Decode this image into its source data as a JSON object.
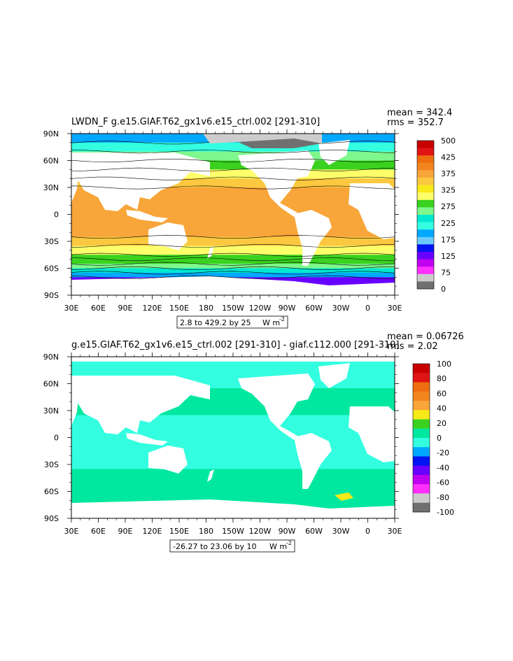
{
  "chart_data": [
    {
      "type": "heatmap",
      "title": "LWDN_F  g.e15.GIAF.T62_gx1v6.e15_ctrl.002  [291-310]",
      "stats": {
        "mean": "mean = 342.4",
        "rms": "rms = 352.7"
      },
      "x_ticks": [
        "30E",
        "60E",
        "90E",
        "120E",
        "150E",
        "180",
        "150W",
        "120W",
        "90W",
        "60W",
        "30W",
        "0",
        "30E"
      ],
      "y_ticks": [
        "90N",
        "60N",
        "30N",
        "0",
        "30S",
        "60S",
        "90S"
      ],
      "xlim": [
        30,
        390
      ],
      "ylim": [
        -90,
        90
      ],
      "range_label": "2.8 to 429.2 by 25",
      "units": "W m",
      "units_exp": "-2",
      "colorbar": {
        "labels": [
          "500",
          "425",
          "375",
          "325",
          "275",
          "225",
          "175",
          "125",
          "75",
          "0"
        ],
        "colors": [
          "#c80000",
          "#e01414",
          "#ee6d10",
          "#f3851f",
          "#f8a53a",
          "#fbc83f",
          "#f7ea18",
          "#ffff6a",
          "#3ad21f",
          "#7ef78c",
          "#00e8d0",
          "#33ffe0",
          "#00a8ff",
          "#6bcaff",
          "#0014f2",
          "#6800ff",
          "#c000f0",
          "#ff30ff",
          "#cccccc",
          "#707070"
        ]
      },
      "bands": [
        {
          "lat": [
            90,
            80
          ],
          "value": 180
        },
        {
          "lat": [
            80,
            70
          ],
          "value": 215
        },
        {
          "lat": [
            70,
            60
          ],
          "value": 260
        },
        {
          "lat": [
            60,
            50
          ],
          "value": 300
        },
        {
          "lat": [
            50,
            40
          ],
          "value": 325
        },
        {
          "lat": [
            40,
            30
          ],
          "value": 355
        },
        {
          "lat": [
            30,
            -25
          ],
          "value": 395
        },
        {
          "lat": [
            -25,
            -35
          ],
          "value": 355
        },
        {
          "lat": [
            -35,
            -45
          ],
          "value": 325
        },
        {
          "lat": [
            -45,
            -50
          ],
          "value": 300
        },
        {
          "lat": [
            -50,
            -55
          ],
          "value": 280
        },
        {
          "lat": [
            -55,
            -60
          ],
          "value": 265
        },
        {
          "lat": [
            -60,
            -65
          ],
          "value": 240
        },
        {
          "lat": [
            -65,
            -70
          ],
          "value": 190
        },
        {
          "lat": [
            -70,
            -90
          ],
          "value": 120
        }
      ]
    },
    {
      "type": "heatmap",
      "title": "g.e15.GIAF.T62_gx1v6.e15_ctrl.002  [291-310]  -  giaf.c112.000  [291-310]",
      "stats": {
        "mean": "mean = 0.06726",
        "rms": "rms = 2.02"
      },
      "x_ticks": [
        "30E",
        "60E",
        "90E",
        "120E",
        "150E",
        "180",
        "150W",
        "120W",
        "90W",
        "60W",
        "30W",
        "0",
        "30E"
      ],
      "y_ticks": [
        "90N",
        "60N",
        "30N",
        "0",
        "30S",
        "60S",
        "90S"
      ],
      "xlim": [
        30,
        390
      ],
      "ylim": [
        -90,
        90
      ],
      "range_label": "-26.27 to 23.06 by 10",
      "units": "W m",
      "units_exp": "-2",
      "colorbar": {
        "labels": [
          "100",
          "80",
          "60",
          "40",
          "20",
          "0",
          "-20",
          "-40",
          "-60",
          "-80",
          "-100"
        ],
        "colors": [
          "#c80000",
          "#e01414",
          "#ee6d10",
          "#f3851f",
          "#f8a53a",
          "#f7ea18",
          "#3ad21f",
          "#00e8a0",
          "#33ffe0",
          "#00a8ff",
          "#0014f2",
          "#6800ff",
          "#c000f0",
          "#ff30ff",
          "#cccccc",
          "#707070"
        ]
      },
      "bands": [
        {
          "lat": [
            90,
            55
          ],
          "value": -5
        },
        {
          "lat": [
            55,
            25
          ],
          "value": 5
        },
        {
          "lat": [
            25,
            -35
          ],
          "value": -5
        },
        {
          "lat": [
            -35,
            -60
          ],
          "value": 5
        },
        {
          "lat": [
            -60,
            -70
          ],
          "value": 8
        },
        {
          "lat": [
            -70,
            -90
          ],
          "value": 3
        }
      ]
    }
  ]
}
